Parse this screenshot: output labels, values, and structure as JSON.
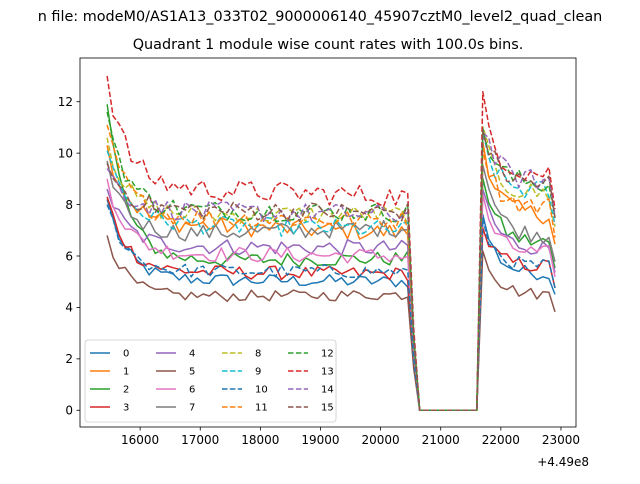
{
  "figure": {
    "suptitle": "n file: modeM0/AS1A13_033T02_9000006140_45907cztM0_level2_quad_clean",
    "title": "Quadrant 1 module wise count rates with 100.0s bins.",
    "x_offset_label": "+4.49e8"
  },
  "chart_data": {
    "type": "line",
    "title": "Quadrant 1 module wise count rates with 100.0s bins.",
    "xlabel": "",
    "ylabel": "",
    "x_offset": 449000000,
    "xlim": [
      15000,
      23250
    ],
    "ylim": [
      -0.65,
      13.7
    ],
    "xticks": [
      16000,
      17000,
      18000,
      19000,
      20000,
      21000,
      22000,
      23000
    ],
    "yticks": [
      0,
      2,
      4,
      6,
      8,
      10,
      12
    ],
    "grid": false,
    "legend_placement": "lower-left",
    "legend_columns": 4,
    "segments": {
      "a": {
        "start": 15450,
        "step": 100,
        "n": 51
      },
      "b": {
        "start": 20550,
        "step": 100,
        "n": 10,
        "pre_value": 2.4
      },
      "c": {
        "start": 21600,
        "step": 100,
        "n": 14
      }
    },
    "series": [
      {
        "name": "0",
        "color": "#1f77b4",
        "dash": false,
        "start": 8.2,
        "level": 5.1,
        "end": 5.0,
        "peak": 7.5,
        "tail": 5.3
      },
      {
        "name": "1",
        "color": "#ff7f0e",
        "dash": false,
        "start": 10.3,
        "level": 7.3,
        "end": 6.9,
        "peak": 10.5,
        "tail": 7.6
      },
      {
        "name": "2",
        "color": "#2ca02c",
        "dash": false,
        "start": 11.9,
        "level": 5.8,
        "end": 5.9,
        "peak": 9.2,
        "tail": 6.5
      },
      {
        "name": "3",
        "color": "#d62728",
        "dash": false,
        "start": 8.3,
        "level": 5.4,
        "end": 5.3,
        "peak": 7.0,
        "tail": 5.6
      },
      {
        "name": "4",
        "color": "#9467bd",
        "dash": false,
        "start": 8.6,
        "level": 6.4,
        "end": 6.3,
        "peak": 8.6,
        "tail": 6.3
      },
      {
        "name": "5",
        "color": "#8c564b",
        "dash": false,
        "start": 6.8,
        "level": 4.4,
        "end": 4.5,
        "peak": 6.3,
        "tail": 4.5
      },
      {
        "name": "6",
        "color": "#e377c2",
        "dash": false,
        "start": 9.0,
        "level": 6.1,
        "end": 6.0,
        "peak": 8.2,
        "tail": 6.1
      },
      {
        "name": "7",
        "color": "#7f7f7f",
        "dash": false,
        "start": 9.7,
        "level": 6.8,
        "end": 7.1,
        "peak": 9.8,
        "tail": 6.8
      },
      {
        "name": "8",
        "color": "#bcbd22",
        "dash": true,
        "start": 10.6,
        "level": 7.6,
        "end": 7.6,
        "peak": 10.7,
        "tail": 8.4
      },
      {
        "name": "9",
        "color": "#17becf",
        "dash": true,
        "start": 10.1,
        "level": 7.3,
        "end": 7.0,
        "peak": 10.6,
        "tail": 8.5
      },
      {
        "name": "10",
        "color": "#1f77b4",
        "dash": true,
        "start": 8.0,
        "level": 5.4,
        "end": 5.4,
        "peak": 7.2,
        "tail": 5.6
      },
      {
        "name": "11",
        "color": "#ff7f0e",
        "dash": true,
        "start": 11.1,
        "level": 7.5,
        "end": 7.4,
        "peak": 10.3,
        "tail": 7.9
      },
      {
        "name": "12",
        "color": "#2ca02c",
        "dash": true,
        "start": 11.6,
        "level": 7.8,
        "end": 7.7,
        "peak": 11.0,
        "tail": 8.8
      },
      {
        "name": "13",
        "color": "#d62728",
        "dash": true,
        "start": 13.0,
        "level": 8.7,
        "end": 8.3,
        "peak": 12.0,
        "tail": 9.2
      },
      {
        "name": "14",
        "color": "#9467bd",
        "dash": true,
        "start": 9.4,
        "level": 7.8,
        "end": 7.6,
        "peak": 11.2,
        "tail": 8.9
      },
      {
        "name": "15",
        "color": "#8c564b",
        "dash": true,
        "start": 9.6,
        "level": 7.8,
        "end": 7.7,
        "peak": 11.0,
        "tail": 8.8
      }
    ]
  }
}
